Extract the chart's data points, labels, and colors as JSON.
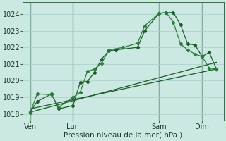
{
  "bg_color": "#cce8e3",
  "grid_color": "#a8cdc8",
  "line_color_dark": "#1a5c28",
  "line_color_med": "#2e7d3e",
  "xlabel": "Pression niveau de la mer( hPa )",
  "ylim": [
    1017.6,
    1024.7
  ],
  "yticks": [
    1018,
    1019,
    1020,
    1021,
    1022,
    1023,
    1024
  ],
  "xtick_labels": [
    "Ven",
    "Lun",
    "Sam",
    "Dim"
  ],
  "xtick_positions": [
    0,
    36,
    108,
    144
  ],
  "xlim": [
    -6,
    162
  ],
  "vline_positions": [
    0,
    36,
    108,
    144
  ],
  "series1_x": [
    0,
    6,
    18,
    24,
    36,
    42,
    48,
    54,
    60,
    66,
    72,
    90,
    96,
    108,
    114,
    120,
    126,
    132,
    138,
    144,
    150,
    156
  ],
  "series1_y": [
    1018.1,
    1018.75,
    1019.2,
    1018.3,
    1018.5,
    1019.9,
    1019.95,
    1020.5,
    1021.3,
    1021.8,
    1021.85,
    1022.0,
    1023.0,
    1024.05,
    1024.08,
    1024.1,
    1023.35,
    1022.2,
    1022.15,
    1021.45,
    1021.7,
    1020.7
  ],
  "series2_x": [
    0,
    6,
    18,
    24,
    36,
    42,
    48,
    54,
    60,
    66,
    78,
    90,
    96,
    108,
    114,
    120,
    126,
    132,
    138,
    144,
    150,
    156
  ],
  "series2_y": [
    1018.05,
    1019.2,
    1019.15,
    1018.4,
    1019.0,
    1019.3,
    1020.55,
    1020.7,
    1021.05,
    1021.85,
    1022.0,
    1022.25,
    1023.3,
    1024.05,
    1024.1,
    1023.5,
    1022.2,
    1021.85,
    1021.6,
    1021.45,
    1020.75,
    1020.7
  ],
  "trend1_x": [
    0,
    156
  ],
  "trend1_y": [
    1018.3,
    1020.7
  ],
  "trend2_x": [
    0,
    156
  ],
  "trend2_y": [
    1018.1,
    1021.1
  ],
  "figsize": [
    3.2,
    2.0
  ],
  "dpi": 100
}
